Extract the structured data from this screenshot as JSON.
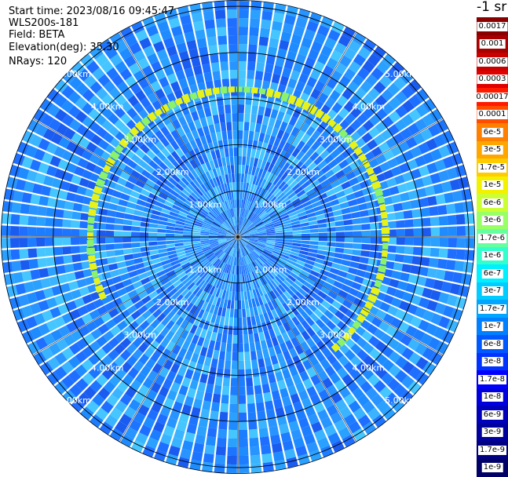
{
  "info": {
    "start_time_label": "Start time:",
    "start_time_value": "2023/08/16 09:45:47",
    "device": "WLS200s-181",
    "field_label": "Field:",
    "field_value": "BETA",
    "elevation_label": "Elevation(deg):",
    "elevation_value": "35.30",
    "nrays_label": "NRays:",
    "nrays_value": "120"
  },
  "colorbar": {
    "unit": "-1 sr",
    "labels": [
      "0.0017",
      "0.001",
      "0.0006",
      "0.0003",
      "0.00017",
      "0.0001",
      "6e-5",
      "3e-5",
      "1.7e-5",
      "1e-5",
      "6e-6",
      "3e-6",
      "1.7e-6",
      "1e-6",
      "6e-7",
      "3e-7",
      "1.7e-7",
      "1e-7",
      "6e-8",
      "3e-8",
      "1.7e-8",
      "1e-8",
      "6e-9",
      "3e-9",
      "1.7e-9",
      "1e-9"
    ],
    "colors": [
      "#8a0000",
      "#a80000",
      "#c80000",
      "#e00000",
      "#ff1a00",
      "#ff4d00",
      "#ff7f00",
      "#ffa600",
      "#ffcc00",
      "#f2f200",
      "#ccff33",
      "#99ff66",
      "#66ffa0",
      "#33ffcc",
      "#00f0ff",
      "#00ccff",
      "#00a6ff",
      "#007fff",
      "#0059ff",
      "#0033ff",
      "#0000ff",
      "#0000dd",
      "#0000bb",
      "#00009c",
      "#000080",
      "#000066"
    ]
  },
  "chart_data": {
    "type": "heatmap",
    "projection": "polar (PPI)",
    "field": "BETA",
    "elevation_deg": 35.3,
    "n_rays": 120,
    "range_rings_km": [
      1,
      2,
      3,
      4,
      5
    ],
    "ring_labels": [
      "1.00km",
      "2.00km",
      "3.00km",
      "4.00km",
      "5.00km"
    ],
    "max_range_km": 5.6,
    "color_scale": "log",
    "value_range": [
      1e-09,
      0.0017
    ],
    "typical_background_value": "3e-8 to 1e-7",
    "features": [
      {
        "description": "arc of elevated backscatter near 3.2 km range, northern half",
        "value": "6e-6 to 1e-5"
      }
    ],
    "colors": {
      "background": "#1e8bff",
      "ring_lines": "#000000",
      "ray_gaps": "#ffffff"
    }
  }
}
